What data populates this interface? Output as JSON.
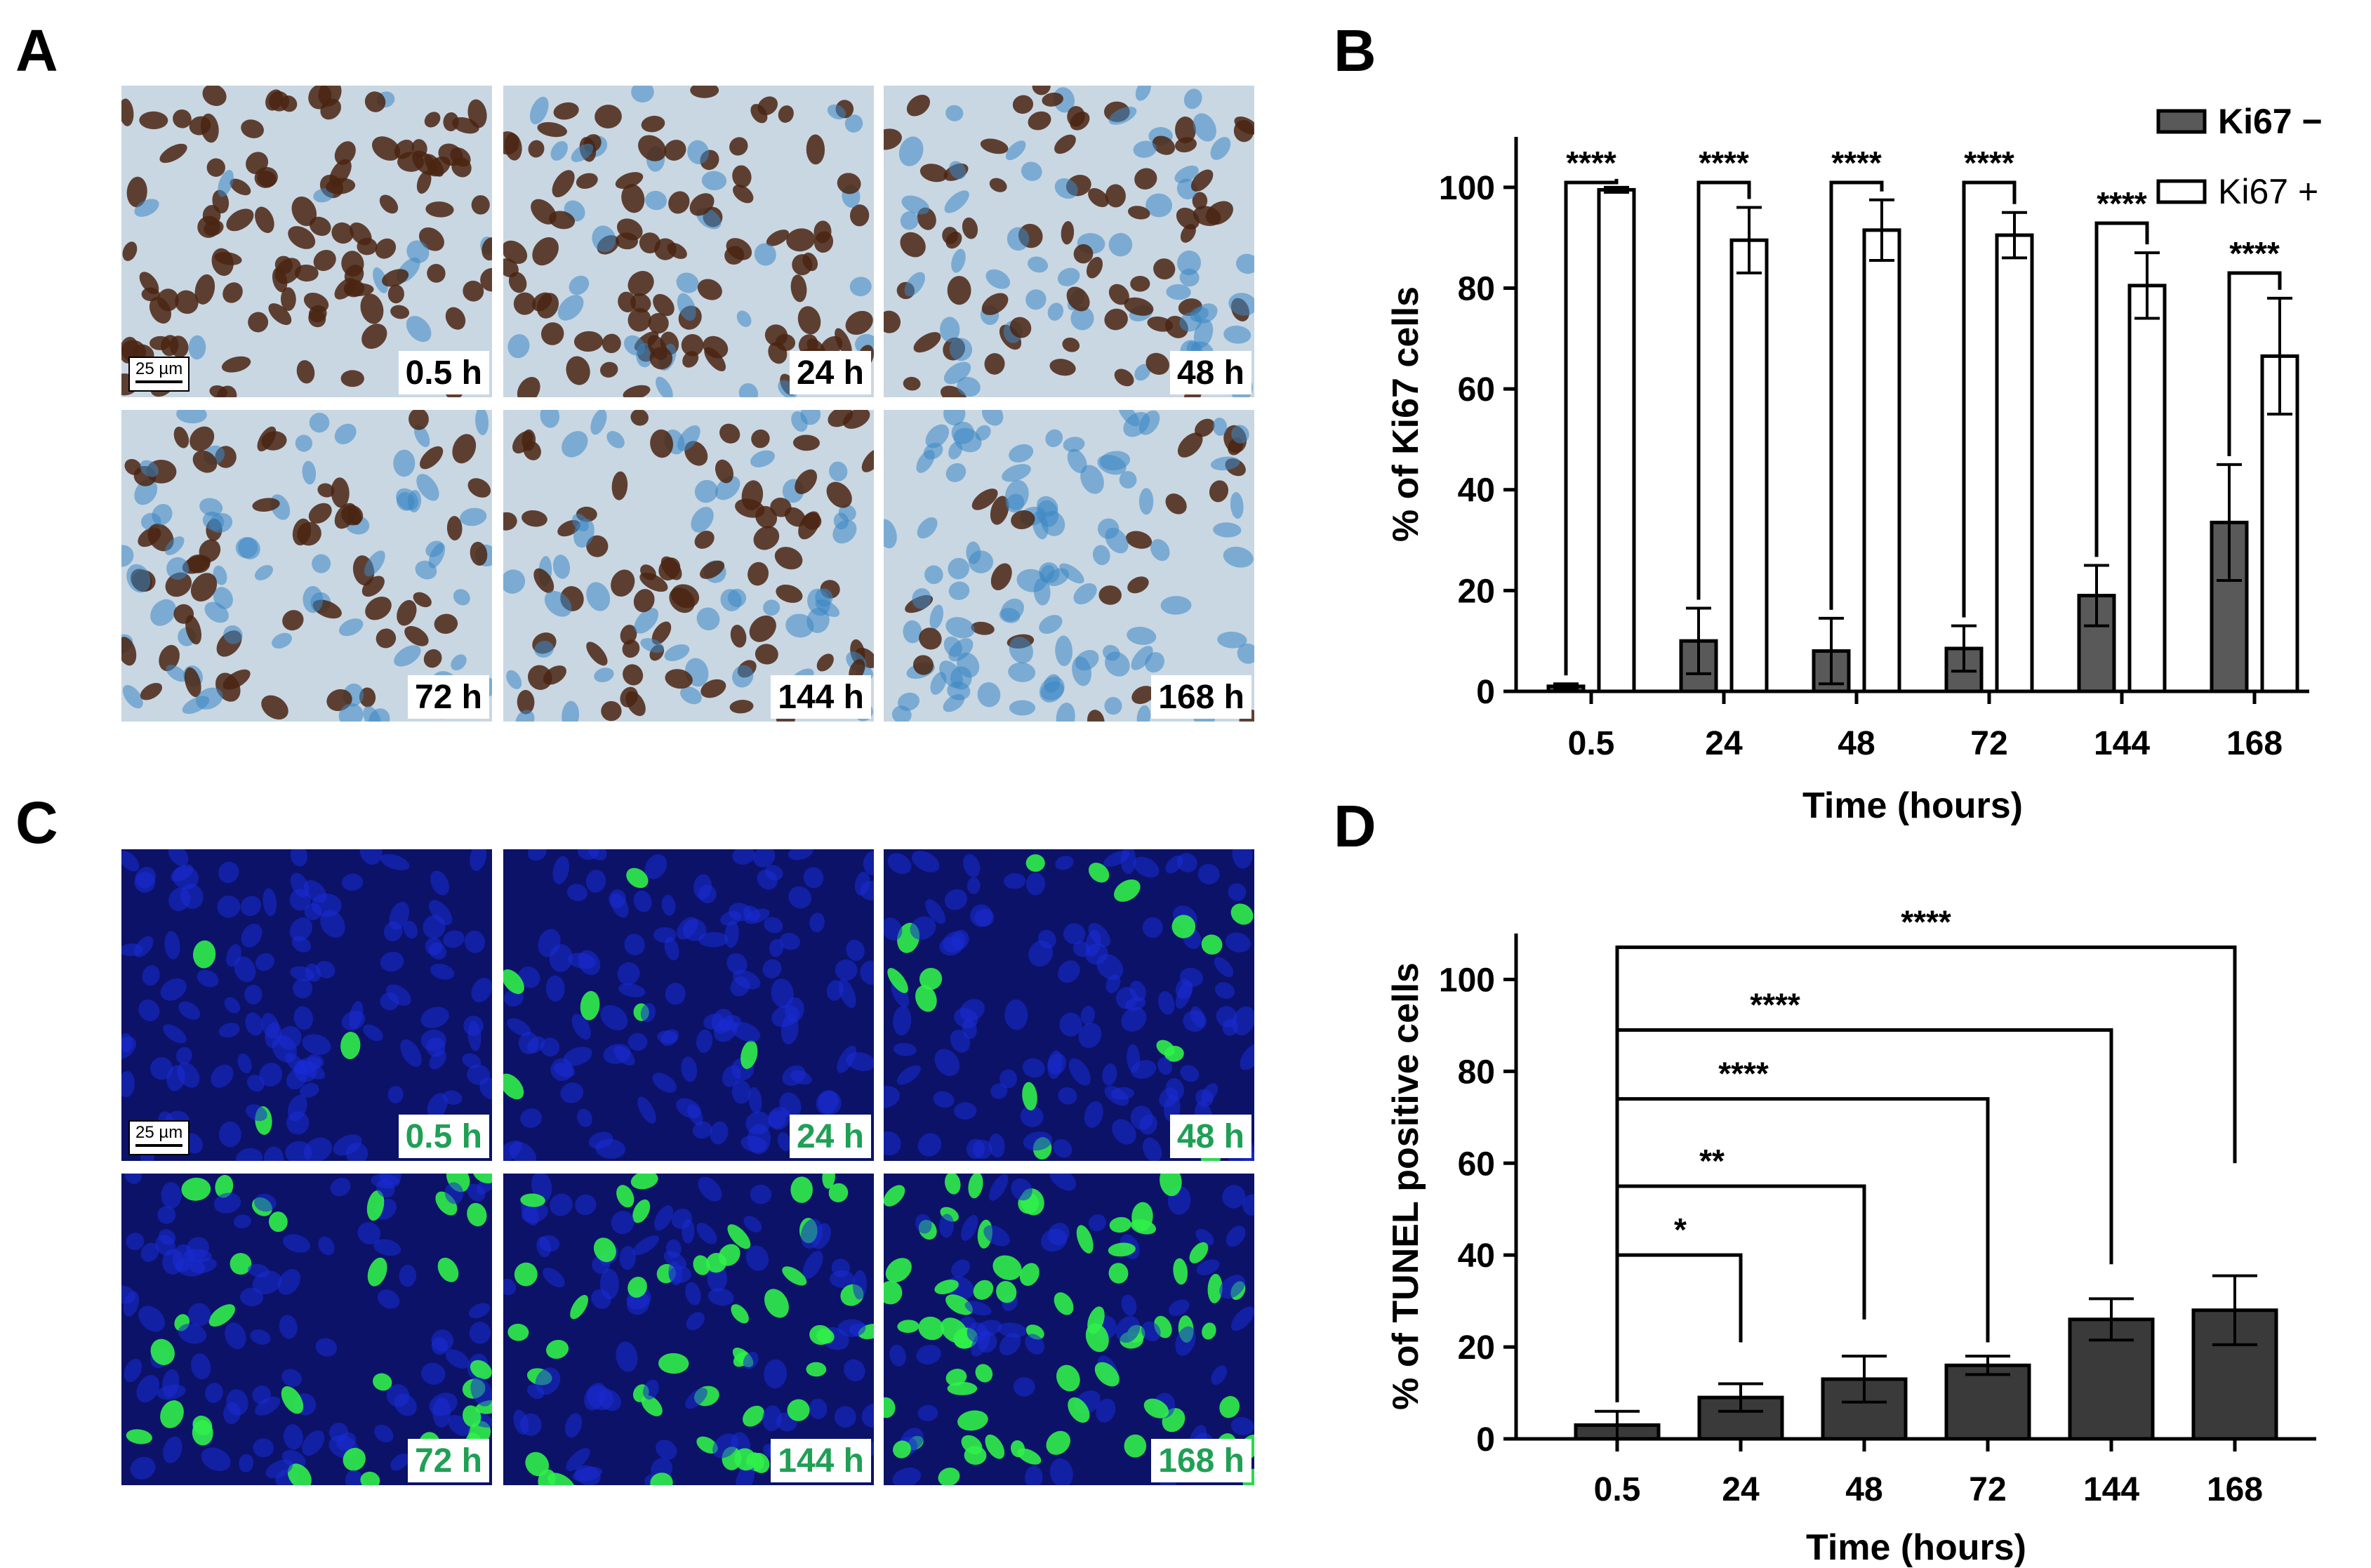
{
  "panels": {
    "a": {
      "letter": "A",
      "scale_label": "25 µm",
      "tiles": [
        "0.5 h",
        "24 h",
        "48 h",
        "72 h",
        "144 h",
        "168 h"
      ],
      "stain_colors": {
        "background": "#c9d7e3",
        "nuclei_brown": "#4a2412",
        "nuclei_blue": "#3a86c4"
      }
    },
    "b": {
      "letter": "B"
    },
    "c": {
      "letter": "C",
      "scale_label": "25 µm",
      "tiles": [
        "0.5 h",
        "24 h",
        "48 h",
        "72 h",
        "144 h",
        "168 h"
      ],
      "stain_colors": {
        "background": "#0b1268",
        "nuclei_blue": "#1a2bd6",
        "tunel_green": "#30f04a"
      }
    },
    "d": {
      "letter": "D"
    }
  },
  "chart_data": [
    {
      "panel": "B",
      "type": "bar",
      "categories": [
        "0.5",
        "24",
        "48",
        "72",
        "144",
        "168"
      ],
      "series": [
        {
          "name": "Ki67 −",
          "color": "#595959",
          "values": [
            1,
            10,
            8,
            8.5,
            19,
            33.5
          ],
          "errors": [
            0.5,
            6.5,
            6.5,
            4.5,
            6,
            11.5
          ]
        },
        {
          "name": "Ki67 +",
          "color": "#ffffff",
          "values": [
            99.5,
            89.5,
            91.5,
            90.5,
            80.5,
            66.5
          ],
          "errors": [
            0.5,
            6.5,
            6,
            4.5,
            6.5,
            11.5
          ]
        }
      ],
      "significance": [
        "****",
        "****",
        "****",
        "****",
        "****",
        "****"
      ],
      "xlabel": "Time (hours)",
      "ylabel": "% of Ki67 cells",
      "yticks": [
        0,
        20,
        40,
        60,
        80,
        100
      ],
      "ylim": [
        0,
        110
      ],
      "legend": "top-right"
    },
    {
      "panel": "D",
      "type": "bar",
      "categories": [
        "0.5",
        "24",
        "48",
        "72",
        "144",
        "168"
      ],
      "values": [
        3,
        9,
        13,
        16,
        26,
        28
      ],
      "errors": [
        3,
        3,
        5,
        2,
        4.5,
        7.5
      ],
      "color": "#3a3a3a",
      "comparisons": [
        {
          "from": "0.5",
          "to": "24",
          "label": "*"
        },
        {
          "from": "0.5",
          "to": "48",
          "label": "**"
        },
        {
          "from": "0.5",
          "to": "72",
          "label": "****"
        },
        {
          "from": "0.5",
          "to": "144",
          "label": "****"
        },
        {
          "from": "0.5",
          "to": "168",
          "label": "****"
        }
      ],
      "xlabel": "Time (hours)",
      "ylabel": "% of TUNEL positive cells",
      "yticks": [
        0,
        20,
        40,
        60,
        80,
        100
      ],
      "ylim": [
        0,
        110
      ]
    }
  ]
}
